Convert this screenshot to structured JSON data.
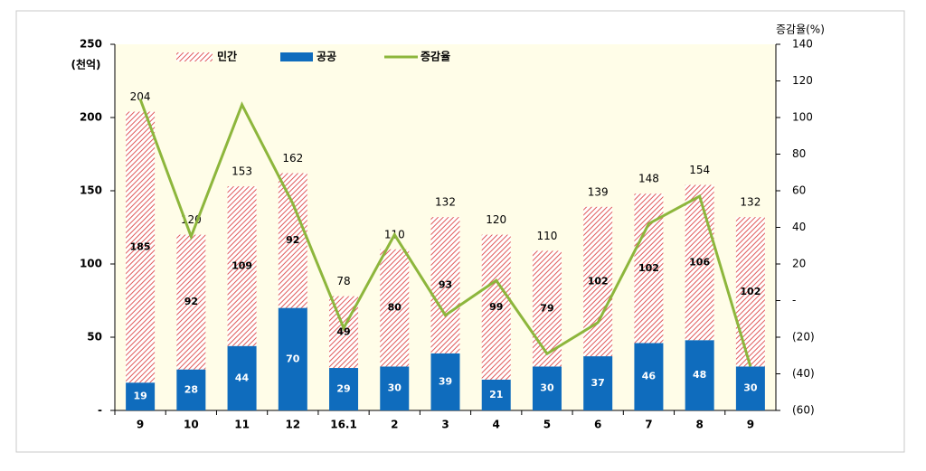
{
  "chart_data": {
    "type": "bar",
    "stacked": true,
    "y_label": "(천억)",
    "y2_label": "증감율(%)",
    "categories": [
      "9",
      "10",
      "11",
      "12",
      "16.1",
      "2",
      "3",
      "4",
      "5",
      "6",
      "7",
      "8",
      "9"
    ],
    "series": [
      {
        "name": "민간",
        "color": "#e05a5a",
        "values": [
          185,
          92,
          109,
          92,
          49,
          80,
          93,
          99,
          79,
          102,
          102,
          106,
          102
        ]
      },
      {
        "name": "공공",
        "color": "#0f6cbd",
        "values": [
          19,
          28,
          44,
          70,
          29,
          30,
          39,
          21,
          30,
          37,
          46,
          48,
          30
        ]
      },
      {
        "name": "증감율",
        "type": "line",
        "axis": "y2",
        "color": "#8db63c",
        "values": [
          110,
          35,
          107,
          53,
          -15,
          36,
          -8,
          11,
          -29,
          -12,
          42,
          57,
          -36
        ]
      }
    ],
    "totals": [
      204,
      120,
      153,
      162,
      78,
      110,
      132,
      120,
      110,
      139,
      148,
      154,
      132
    ],
    "ylim": [
      0,
      250
    ],
    "yticks": [
      {
        "value": 0,
        "label": "-"
      },
      50,
      100,
      150,
      200,
      250
    ],
    "y2lim": [
      -60,
      140
    ],
    "y2ticks": [
      {
        "value": -60,
        "label": "(60)"
      },
      {
        "value": -40,
        "label": "(40)"
      },
      {
        "value": -20,
        "label": "(20)"
      },
      {
        "value": 0,
        "label": "-"
      },
      20,
      40,
      60,
      80,
      100,
      120,
      140
    ],
    "plot_background": "#fffde8"
  }
}
